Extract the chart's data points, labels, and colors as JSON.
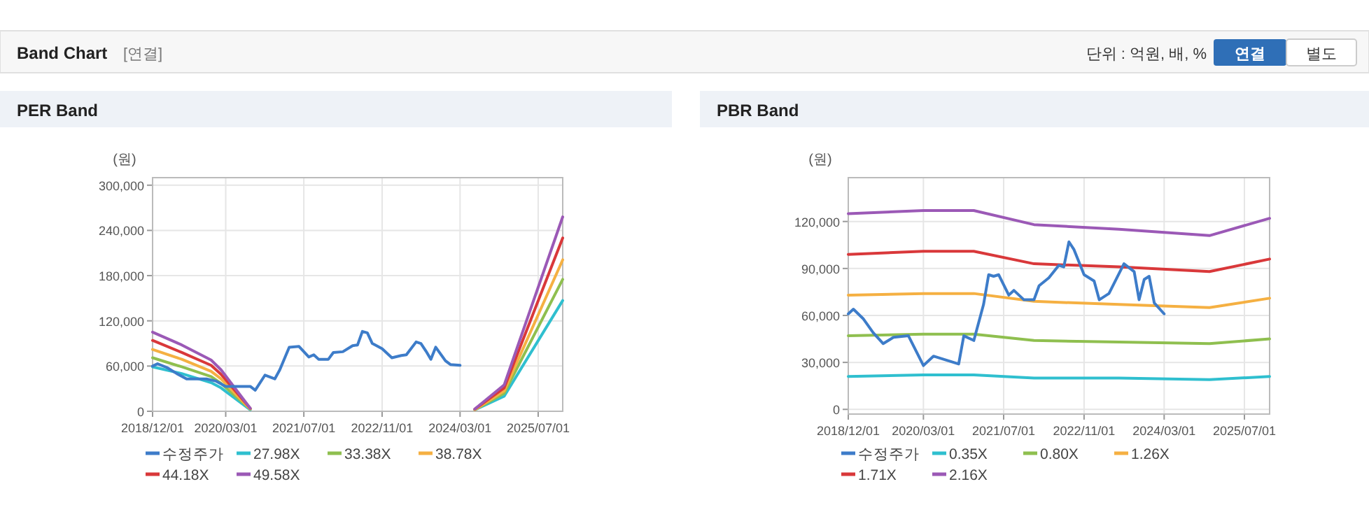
{
  "chart_data": [
    {
      "type": "line",
      "title": "PER Band",
      "ylabel": "(원)",
      "annotations": [
        "Band Chart",
        "[연결]",
        "단위 : 억원, 배, %",
        "연결",
        "별도"
      ],
      "xlim": [
        "2018-12-01",
        "2025-12-01"
      ],
      "ylim": [
        0,
        310000
      ],
      "xticks": [
        {
          "value": "2018-12-01",
          "label": "2018/12/01"
        },
        {
          "value": "2020-03-01",
          "label": "2020/03/01"
        },
        {
          "value": "2021-07-01",
          "label": "2021/07/01"
        },
        {
          "value": "2022-11-01",
          "label": "2022/11/01"
        },
        {
          "value": "2024-03-01",
          "label": "2024/03/01"
        },
        {
          "value": "2025-07-01",
          "label": "2025/07/01"
        }
      ],
      "yticks": [
        {
          "value": 0,
          "label": "0"
        },
        {
          "value": 60000,
          "label": "60,000"
        },
        {
          "value": 120000,
          "label": "120,000"
        },
        {
          "value": 180000,
          "label": "180,000"
        },
        {
          "value": 240000,
          "label": "240,000"
        },
        {
          "value": 300000,
          "label": "300,000"
        }
      ],
      "grid": true,
      "legend": "bottom",
      "line_style": "solid",
      "marker": "none",
      "x": [
        "2018-12",
        "2019-06",
        "2019-12",
        "2020-02",
        "2020-08",
        "2022-06",
        "2024-06",
        "2024-12",
        "2025-12"
      ],
      "series": [
        {
          "name": "수정주가",
          "color": "#3d7cc9",
          "x": [
            "2018-12",
            "2019-01",
            "2019-03",
            "2019-05",
            "2019-07",
            "2019-11",
            "2020-01",
            "2020-03",
            "2020-08",
            "2020-09",
            "2020-11",
            "2021-01",
            "2021-02",
            "2021-04",
            "2021-06",
            "2021-08",
            "2021-09",
            "2021-10",
            "2021-12",
            "2022-01",
            "2022-03",
            "2022-05",
            "2022-06",
            "2022-07",
            "2022-08",
            "2022-09",
            "2022-11",
            "2023-01",
            "2023-03",
            "2023-04",
            "2023-06",
            "2023-07",
            "2023-08",
            "2023-09",
            "2023-10",
            "2023-12",
            "2024-01",
            "2024-03"
          ],
          "values": [
            60000,
            63000,
            58000,
            50000,
            43000,
            43000,
            40000,
            33000,
            33000,
            28000,
            48000,
            43000,
            55000,
            85000,
            86000,
            72000,
            75000,
            69000,
            69000,
            78000,
            79000,
            87000,
            88000,
            106000,
            104000,
            90000,
            83000,
            71000,
            74000,
            75000,
            92000,
            90000,
            80000,
            69000,
            85000,
            67000,
            62000,
            61000
          ]
        },
        {
          "name": "27.98X",
          "color": "#2fbfcf",
          "values": [
            59000,
            50000,
            38000,
            31000,
            2000,
            null,
            2000,
            20000,
            147000
          ]
        },
        {
          "name": "33.38X",
          "color": "#8fbf4f",
          "values": [
            71000,
            59000,
            46000,
            37000,
            3000,
            null,
            2000,
            24000,
            175000
          ]
        },
        {
          "name": "38.78X",
          "color": "#f5b042",
          "values": [
            82000,
            69000,
            53000,
            43000,
            3000,
            null,
            2000,
            27000,
            201000
          ]
        },
        {
          "name": "44.18X",
          "color": "#d9383a",
          "values": [
            94000,
            78000,
            61000,
            49000,
            4000,
            null,
            3000,
            31000,
            230000
          ]
        },
        {
          "name": "49.58X",
          "color": "#9b59b6",
          "values": [
            105000,
            88000,
            68000,
            55000,
            4000,
            null,
            3000,
            35000,
            258000
          ]
        }
      ]
    },
    {
      "type": "line",
      "title": "PBR Band",
      "ylabel": "(원)",
      "xlim": [
        "2018-12-01",
        "2025-12-01"
      ],
      "ylim": [
        -3000,
        148000
      ],
      "xticks": [
        {
          "value": "2018-12-01",
          "label": "2018/12/01"
        },
        {
          "value": "2020-03-01",
          "label": "2020/03/01"
        },
        {
          "value": "2021-07-01",
          "label": "2021/07/01"
        },
        {
          "value": "2022-11-01",
          "label": "2022/11/01"
        },
        {
          "value": "2024-03-01",
          "label": "2024/03/01"
        },
        {
          "value": "2025-07-01",
          "label": "2025/07/01"
        }
      ],
      "yticks": [
        {
          "value": 0,
          "label": "0"
        },
        {
          "value": 30000,
          "label": "30,000"
        },
        {
          "value": 60000,
          "label": "60,000"
        },
        {
          "value": 90000,
          "label": "90,000"
        },
        {
          "value": 120000,
          "label": "120,000"
        }
      ],
      "grid": true,
      "legend": "bottom",
      "line_style": "solid",
      "marker": "none",
      "x": [
        "2018-12",
        "2020-03",
        "2021-01",
        "2022-01",
        "2023-06",
        "2024-12",
        "2025-12"
      ],
      "series": [
        {
          "name": "수정주가",
          "color": "#3d7cc9",
          "x": [
            "2018-12",
            "2019-01",
            "2019-03",
            "2019-05",
            "2019-07",
            "2019-09",
            "2019-12",
            "2020-03",
            "2020-05",
            "2020-07",
            "2020-10",
            "2020-11",
            "2021-01",
            "2021-03",
            "2021-04",
            "2021-05",
            "2021-06",
            "2021-08",
            "2021-09",
            "2021-11",
            "2022-01",
            "2022-02",
            "2022-04",
            "2022-06",
            "2022-07",
            "2022-08",
            "2022-09",
            "2022-11",
            "2023-01",
            "2023-02",
            "2023-04",
            "2023-07",
            "2023-09",
            "2023-10",
            "2023-11",
            "2023-12",
            "2024-01",
            "2024-03"
          ],
          "values": [
            61000,
            64000,
            58000,
            49000,
            42000,
            46000,
            47000,
            28000,
            34000,
            32000,
            29000,
            47000,
            44000,
            67000,
            86000,
            85000,
            86000,
            73000,
            76000,
            70000,
            70000,
            79000,
            84000,
            92000,
            91000,
            107000,
            102000,
            86000,
            82000,
            70000,
            74000,
            93000,
            88000,
            70000,
            83000,
            85000,
            68000,
            61000
          ]
        },
        {
          "name": "0.35X",
          "color": "#2fbfcf",
          "values": [
            21000,
            22000,
            22000,
            20000,
            20000,
            19000,
            21000
          ]
        },
        {
          "name": "0.80X",
          "color": "#8fbf4f",
          "values": [
            47000,
            48000,
            48000,
            44000,
            43000,
            42000,
            45000
          ]
        },
        {
          "name": "1.26X",
          "color": "#f5b042",
          "values": [
            73000,
            74000,
            74000,
            69000,
            67000,
            65000,
            71000
          ]
        },
        {
          "name": "1.71X",
          "color": "#d9383a",
          "values": [
            99000,
            101000,
            101000,
            93000,
            91000,
            88000,
            96000
          ]
        },
        {
          "name": "2.16X",
          "color": "#9b59b6",
          "values": [
            125000,
            127000,
            127000,
            118000,
            115000,
            111000,
            122000
          ]
        }
      ]
    }
  ]
}
